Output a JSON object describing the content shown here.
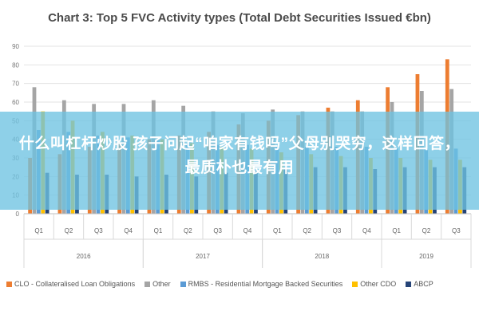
{
  "overlay": {
    "headline": "什么叫杠杆炒股 孩子问起“咱家有钱吗”父母别哭穷，这样回答，最质朴也最有用"
  },
  "chart_data": {
    "type": "bar",
    "title": "Chart 3: Top 5 FVC Activity types (Total Debt Securities Issued €bn)",
    "ylim": [
      0,
      90
    ],
    "yticks": [
      0,
      10,
      20,
      30,
      40,
      50,
      60,
      70,
      80,
      90
    ],
    "grid": true,
    "legend_position": "bottom",
    "categories": [
      "Q1",
      "Q2",
      "Q3",
      "Q4",
      "Q1",
      "Q2",
      "Q3",
      "Q4",
      "Q1",
      "Q2",
      "Q3",
      "Q4",
      "Q1",
      "Q2",
      "Q3"
    ],
    "groups": [
      {
        "label": "2016",
        "start": 0,
        "count": 4
      },
      {
        "label": "2017",
        "start": 4,
        "count": 4
      },
      {
        "label": "2018",
        "start": 8,
        "count": 4
      },
      {
        "label": "2019",
        "start": 12,
        "count": 3
      }
    ],
    "series": [
      {
        "name": "CLO - Collateralised Loan Obligations",
        "color": "#ed7d31",
        "values": [
          30,
          32,
          36,
          38,
          40,
          42,
          44,
          48,
          50,
          53,
          57,
          61,
          68,
          75,
          83
        ]
      },
      {
        "name": "Other",
        "color": "#a5a5a5",
        "values": [
          68,
          61,
          59,
          59,
          61,
          58,
          55,
          54,
          56,
          55,
          55,
          55,
          60,
          66,
          67
        ]
      },
      {
        "name": "RMBS - Residential Mortgage Backed Securities",
        "color": "#5b9bd5",
        "values": [
          45,
          44,
          42,
          41,
          40,
          38,
          37,
          37,
          36,
          36,
          36,
          36,
          35,
          35,
          35
        ]
      },
      {
        "name": "Other CDO",
        "color": "#ffc000",
        "values": [
          55,
          50,
          44,
          42,
          40,
          38,
          36,
          35,
          33,
          32,
          31,
          30,
          30,
          29,
          29
        ]
      },
      {
        "name": "ABCP",
        "color": "#264478",
        "values": [
          22,
          21,
          21,
          20,
          21,
          20,
          22,
          23,
          24,
          25,
          25,
          24,
          25,
          25,
          25
        ]
      }
    ]
  }
}
